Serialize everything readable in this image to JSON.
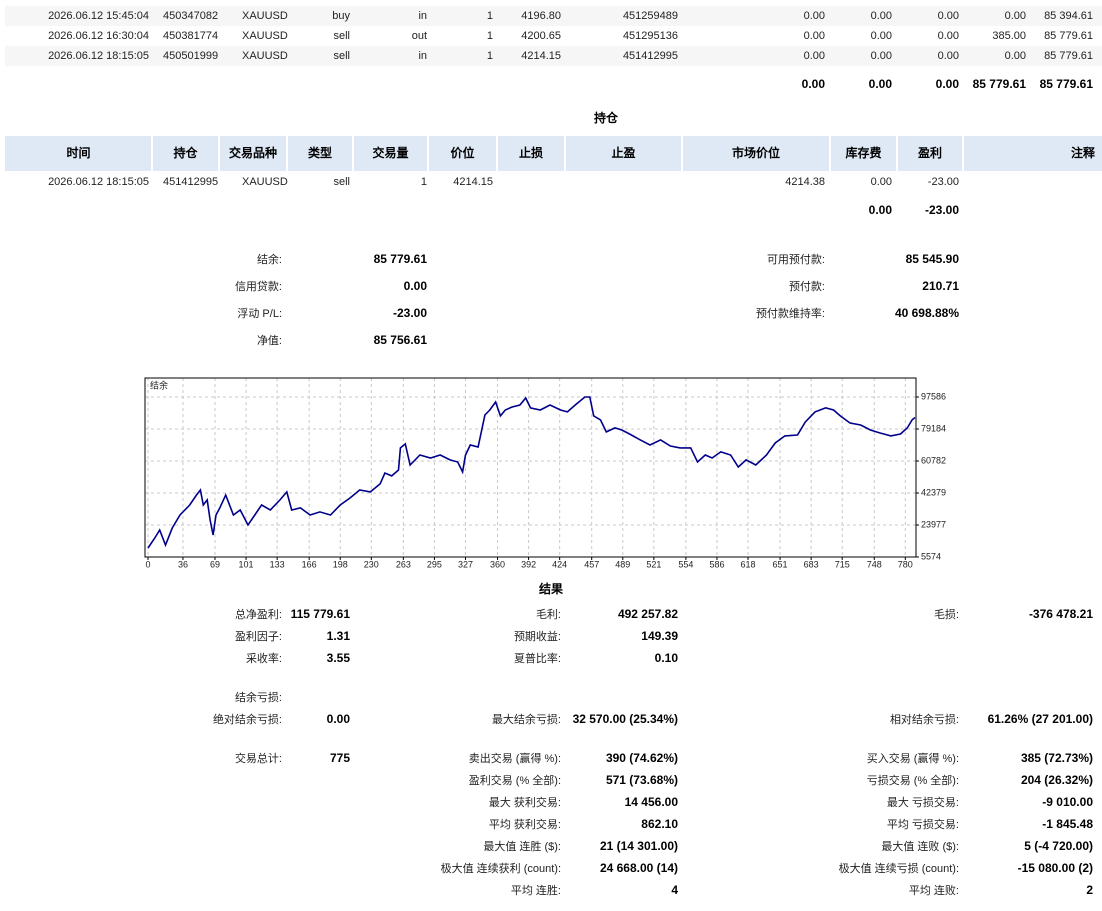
{
  "deals": {
    "rows": [
      [
        "2026.06.12 15:45:04",
        "450347082",
        "XAUUSD",
        "buy",
        "in",
        "1",
        "4196.80",
        "451259489",
        "0.00",
        "0.00",
        "0.00",
        "0.00",
        "85 394.61"
      ],
      [
        "2026.06.12 16:30:04",
        "450381774",
        "XAUUSD",
        "sell",
        "out",
        "1",
        "4200.65",
        "451295136",
        "0.00",
        "0.00",
        "0.00",
        "385.00",
        "85 779.61"
      ],
      [
        "2026.06.12 18:15:05",
        "450501999",
        "XAUUSD",
        "sell",
        "in",
        "1",
        "4214.15",
        "451412995",
        "0.00",
        "0.00",
        "0.00",
        "0.00",
        "85 779.61"
      ]
    ],
    "totals": [
      "0.00",
      "0.00",
      "0.00",
      "85 779.61",
      "85 779.61"
    ]
  },
  "positions": {
    "title": "持仓",
    "headers": [
      "时间",
      "持仓",
      "交易品种",
      "类型",
      "交易量",
      "价位",
      "止损",
      "止盈",
      "市场价位",
      "库存费",
      "盈利",
      "注释"
    ],
    "rows": [
      [
        "2026.06.12 18:15:05",
        "451412995",
        "XAUUSD",
        "sell",
        "1",
        "4214.15",
        null,
        null,
        "4214.38",
        "0.00",
        "-23.00",
        null
      ]
    ],
    "totals": [
      "0.00",
      "-23.00"
    ]
  },
  "account": {
    "left": [
      [
        "结余:",
        "85 779.61"
      ],
      [
        "信用贷款:",
        "0.00"
      ],
      [
        "浮动 P/L:",
        "-23.00"
      ],
      [
        "净值:",
        "85 756.61"
      ]
    ],
    "right": [
      [
        "可用预付款:",
        "85 545.90"
      ],
      [
        "预付款:",
        "210.71"
      ],
      [
        "预付款维持率:",
        "40 698.88%"
      ]
    ]
  },
  "balance_chart": {
    "type": "line",
    "label": "结余",
    "color": "#00008b",
    "x": [
      0,
      7,
      12,
      18,
      25,
      33,
      43,
      50,
      54,
      57,
      61,
      64,
      67,
      70,
      74,
      80,
      88,
      95,
      103,
      110,
      117,
      126,
      136,
      143,
      148,
      157,
      167,
      177,
      188,
      198,
      208,
      218,
      229,
      239,
      244,
      251,
      258,
      260,
      265,
      270,
      280,
      291,
      301,
      311,
      319,
      324,
      327,
      332,
      340,
      347,
      352,
      358,
      363,
      368,
      375,
      383,
      389,
      394,
      404,
      414,
      425,
      432,
      440,
      450,
      455,
      459,
      466,
      472,
      481,
      488,
      496,
      507,
      517,
      528,
      538,
      548,
      559,
      566,
      574,
      581,
      590,
      600,
      608,
      616,
      626,
      637,
      646,
      656,
      669,
      677,
      687,
      698,
      706,
      713,
      723,
      734,
      744,
      754,
      765,
      775,
      782,
      787,
      790
    ],
    "values": [
      10750,
      16500,
      21100,
      12500,
      22300,
      29700,
      35500,
      41200,
      44100,
      35500,
      38400,
      26900,
      18200,
      29700,
      33800,
      41200,
      29700,
      32600,
      24000,
      29700,
      35500,
      32600,
      38400,
      43000,
      32600,
      33800,
      29700,
      31500,
      29700,
      35500,
      39500,
      44100,
      43000,
      47600,
      53900,
      52200,
      55600,
      68300,
      70600,
      58500,
      64200,
      62500,
      64200,
      61400,
      60200,
      54500,
      64200,
      70000,
      68800,
      87200,
      90100,
      94700,
      86700,
      90100,
      91800,
      93000,
      97000,
      91300,
      90100,
      93000,
      90100,
      89000,
      93000,
      97600,
      97600,
      86700,
      84400,
      77500,
      79800,
      78600,
      76300,
      72900,
      70000,
      72900,
      69400,
      68300,
      68300,
      60200,
      64200,
      62500,
      66000,
      64200,
      57300,
      61400,
      58500,
      64200,
      71100,
      75200,
      75700,
      83200,
      89000,
      91300,
      90100,
      86700,
      82600,
      81500,
      78600,
      76900,
      75200,
      76300,
      79800,
      84400,
      85800
    ],
    "xlim": [
      0,
      791
    ],
    "ylim": [
      5574,
      108500
    ],
    "xticks": [
      0,
      36,
      69,
      101,
      133,
      166,
      198,
      230,
      263,
      295,
      327,
      360,
      392,
      424,
      457,
      489,
      521,
      554,
      586,
      618,
      651,
      683,
      715,
      748,
      780
    ],
    "yticks": [
      5574,
      23977,
      42379,
      60782,
      79184,
      97586
    ],
    "grid": true
  },
  "results": {
    "title": "结果",
    "rows": [
      {
        "left": [
          "总净盈利:",
          "115 779.61"
        ],
        "middle": [
          "毛利:",
          "492 257.82"
        ],
        "right": [
          "毛损:",
          "-376 478.21"
        ]
      },
      {
        "left": [
          "盈利因子:",
          "1.31"
        ],
        "middle": [
          "预期收益:",
          "149.39"
        ]
      },
      {
        "left": [
          "采收率:",
          "3.55"
        ],
        "middle": [
          "夏普比率:",
          "0.10"
        ]
      },
      {
        "left": [
          "结余亏损:"
        ]
      },
      {
        "left": [
          "绝对结余亏损:",
          "0.00"
        ],
        "middle": [
          "最大结余亏损:",
          "32 570.00 (25.34%)"
        ],
        "right": [
          "相对结余亏损:",
          "61.26% (27 201.00)"
        ]
      },
      {
        "left": [
          "交易总计:",
          "775"
        ],
        "middle": [
          "卖出交易 (赢得 %):",
          "390 (74.62%)"
        ],
        "right": [
          "买入交易 (赢得 %):",
          "385 (72.73%)"
        ]
      },
      {
        "middle": [
          "盈利交易 (% 全部):",
          "571 (73.68%)"
        ],
        "right": [
          "亏损交易 (% 全部):",
          "204 (26.32%)"
        ]
      },
      {
        "middle": [
          "最大 获利交易:",
          "14 456.00"
        ],
        "right": [
          "最大 亏损交易:",
          "-9 010.00"
        ]
      },
      {
        "middle": [
          "平均 获利交易:",
          "862.10"
        ],
        "right": [
          "平均 亏损交易:",
          "-1 845.48"
        ]
      },
      {
        "middle": [
          "最大值 连胜 ($):",
          "21 (14 301.00)"
        ],
        "right": [
          "最大值 连败 ($):",
          "5 (-4 720.00)"
        ]
      },
      {
        "middle": [
          "极大值 连续获利 (count):",
          "24 668.00 (14)"
        ],
        "right": [
          "极大值 连续亏损 (count):",
          "-15 080.00 (2)"
        ]
      },
      {
        "middle": [
          "平均 连胜:",
          "4"
        ],
        "right": [
          "平均 连败:",
          "2"
        ]
      }
    ]
  }
}
